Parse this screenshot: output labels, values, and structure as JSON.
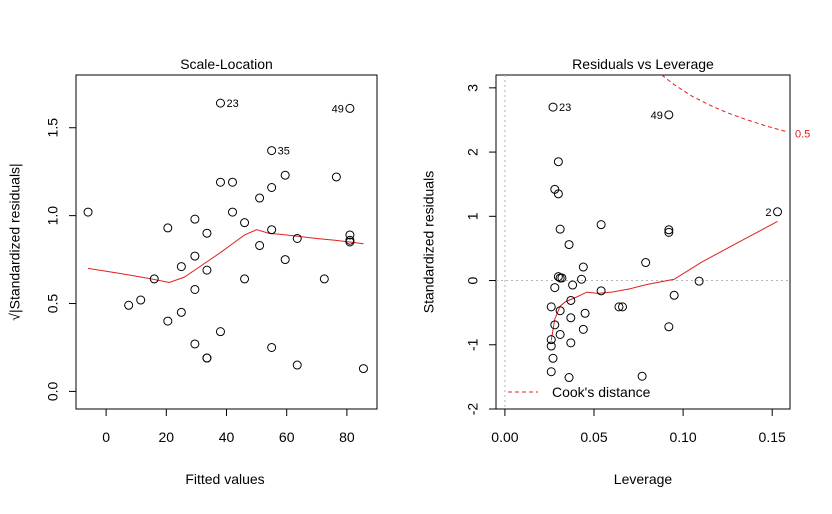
{
  "chart_data": [
    {
      "type": "scatter",
      "title": "Scale-Location",
      "xlabel": "Fitted values",
      "ylabel": "√|Standardized residuals|",
      "xlim": [
        -10,
        90
      ],
      "ylim": [
        -0.1,
        1.8
      ],
      "xticks": [
        "0",
        "20",
        "40",
        "60",
        "80"
      ],
      "yticks": [
        "0.0",
        "0.5",
        "1.0",
        "1.5"
      ],
      "xtick_values": [
        0,
        20,
        40,
        60,
        80
      ],
      "ytick_values": [
        0,
        0.5,
        1.0,
        1.5
      ],
      "points": [
        [
          -6,
          1.02
        ],
        [
          7.5,
          0.49
        ],
        [
          11.5,
          0.52
        ],
        [
          16,
          0.64
        ],
        [
          20.5,
          0.93
        ],
        [
          20.5,
          0.4
        ],
        [
          25,
          0.71
        ],
        [
          25,
          0.45
        ],
        [
          29.5,
          0.98
        ],
        [
          29.5,
          0.77
        ],
        [
          29.5,
          0.58
        ],
        [
          29.5,
          0.27
        ],
        [
          33.5,
          0.9
        ],
        [
          33.5,
          0.69
        ],
        [
          33.5,
          0.19
        ],
        [
          33.5,
          0.19
        ],
        [
          38,
          1.64
        ],
        [
          38,
          1.19
        ],
        [
          38,
          0.34
        ],
        [
          42,
          1.19
        ],
        [
          42,
          1.02
        ],
        [
          46,
          0.96
        ],
        [
          46,
          0.64
        ],
        [
          51,
          1.1
        ],
        [
          51,
          0.83
        ],
        [
          55,
          1.37
        ],
        [
          55,
          1.16
        ],
        [
          55,
          0.92
        ],
        [
          55,
          0.25
        ],
        [
          59.5,
          1.23
        ],
        [
          59.5,
          0.75
        ],
        [
          63.5,
          0.87
        ],
        [
          63.5,
          0.15
        ],
        [
          72.5,
          0.64
        ],
        [
          76.5,
          1.22
        ],
        [
          81,
          1.61
        ],
        [
          81,
          0.89
        ],
        [
          81,
          0.86
        ],
        [
          81,
          0.85
        ],
        [
          85.5,
          0.13
        ]
      ],
      "smooth": [
        [
          -6,
          0.7
        ],
        [
          5,
          0.67
        ],
        [
          15,
          0.64
        ],
        [
          21,
          0.62
        ],
        [
          26,
          0.65
        ],
        [
          32,
          0.72
        ],
        [
          38,
          0.79
        ],
        [
          42,
          0.84
        ],
        [
          46,
          0.89
        ],
        [
          50,
          0.92
        ],
        [
          54,
          0.9
        ],
        [
          60,
          0.89
        ],
        [
          65,
          0.88
        ],
        [
          70,
          0.87
        ],
        [
          76,
          0.86
        ],
        [
          81,
          0.85
        ],
        [
          85.5,
          0.84
        ]
      ],
      "annotations": [
        {
          "label": "23",
          "x": 38,
          "y": 1.64
        },
        {
          "label": "35",
          "x": 55,
          "y": 1.37
        },
        {
          "label": "49",
          "x": 81,
          "y": 1.61
        }
      ]
    },
    {
      "type": "scatter",
      "title": "Residuals vs Leverage",
      "xlabel": "Leverage",
      "ylabel": "Standardized residuals",
      "xlim": [
        -0.005,
        0.16
      ],
      "ylim": [
        -2.0,
        3.2
      ],
      "xticks": [
        "0.00",
        "0.05",
        "0.10",
        "0.15"
      ],
      "yticks": [
        "-2",
        "-1",
        "0",
        "1",
        "2",
        "3"
      ],
      "xtick_values": [
        0,
        0.05,
        0.1,
        0.15
      ],
      "ytick_values": [
        -2,
        -1,
        0,
        1,
        2,
        3
      ],
      "points": [
        [
          0.027,
          2.7
        ],
        [
          0.03,
          1.85
        ],
        [
          0.028,
          1.42
        ],
        [
          0.03,
          1.35
        ],
        [
          0.031,
          0.8
        ],
        [
          0.036,
          0.56
        ],
        [
          0.03,
          0.06
        ],
        [
          0.031,
          0.04
        ],
        [
          0.032,
          0.04
        ],
        [
          0.028,
          -0.11
        ],
        [
          0.026,
          -0.41
        ],
        [
          0.031,
          -0.47
        ],
        [
          0.028,
          -0.69
        ],
        [
          0.026,
          -0.92
        ],
        [
          0.026,
          -1.02
        ],
        [
          0.027,
          -1.21
        ],
        [
          0.026,
          -1.42
        ],
        [
          0.036,
          -1.51
        ],
        [
          0.031,
          -0.84
        ],
        [
          0.037,
          -0.58
        ],
        [
          0.037,
          -0.97
        ],
        [
          0.037,
          -0.31
        ],
        [
          0.038,
          -0.07
        ],
        [
          0.043,
          0.02
        ],
        [
          0.044,
          0.21
        ],
        [
          0.045,
          -0.51
        ],
        [
          0.044,
          -0.76
        ],
        [
          0.054,
          0.87
        ],
        [
          0.054,
          -0.16
        ],
        [
          0.064,
          -0.41
        ],
        [
          0.066,
          -0.41
        ],
        [
          0.077,
          -1.49
        ],
        [
          0.079,
          0.28
        ],
        [
          0.092,
          2.58
        ],
        [
          0.092,
          0.79
        ],
        [
          0.092,
          0.75
        ],
        [
          0.092,
          -0.72
        ],
        [
          0.095,
          -0.23
        ],
        [
          0.109,
          -0.01
        ],
        [
          0.153,
          1.07
        ]
      ],
      "smooth": [
        [
          0.026,
          -0.93
        ],
        [
          0.028,
          -0.6
        ],
        [
          0.031,
          -0.4
        ],
        [
          0.034,
          -0.33
        ],
        [
          0.04,
          -0.26
        ],
        [
          0.046,
          -0.18
        ],
        [
          0.052,
          -0.2
        ],
        [
          0.06,
          -0.18
        ],
        [
          0.07,
          -0.13
        ],
        [
          0.08,
          -0.06
        ],
        [
          0.095,
          0.02
        ],
        [
          0.11,
          0.28
        ],
        [
          0.13,
          0.58
        ],
        [
          0.153,
          0.92
        ]
      ],
      "cooks_curve": [
        [
          0.088,
          3.2
        ],
        [
          0.095,
          3.05
        ],
        [
          0.105,
          2.87
        ],
        [
          0.115,
          2.73
        ],
        [
          0.125,
          2.61
        ],
        [
          0.135,
          2.51
        ],
        [
          0.145,
          2.42
        ],
        [
          0.155,
          2.34
        ],
        [
          0.158,
          2.32
        ]
      ],
      "cooks_label": "0.5",
      "annotations": [
        {
          "label": "23",
          "x": 0.027,
          "y": 2.7
        },
        {
          "label": "49",
          "x": 0.092,
          "y": 2.58
        },
        {
          "label": "2",
          "x": 0.153,
          "y": 1.07
        }
      ],
      "legend": {
        "label": "Cook's distance",
        "position": "bottom-left"
      }
    }
  ]
}
